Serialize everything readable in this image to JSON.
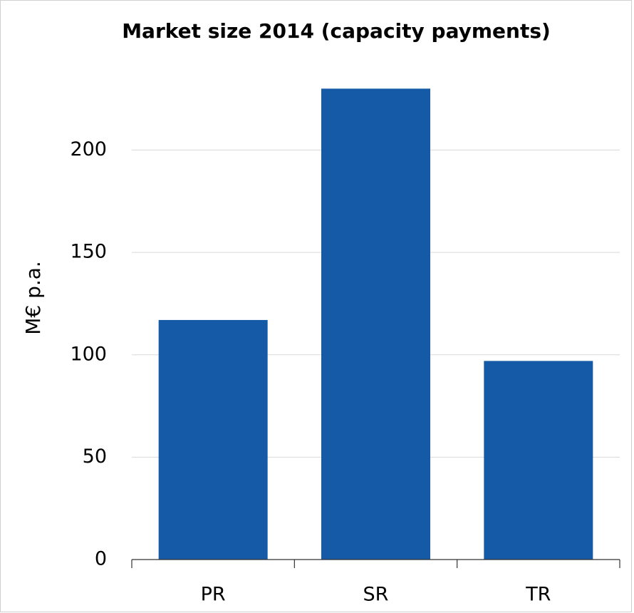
{
  "chart_data": {
    "type": "bar",
    "title": "Market size 2014 (capacity payments)",
    "y_label": "M€ p.a.",
    "categories": [
      "PR",
      "SR",
      "TR"
    ],
    "values": [
      117,
      230,
      97
    ],
    "color": "#155aa6",
    "ylim": [
      0,
      235
    ],
    "yticks": [
      0,
      50,
      100,
      150,
      200
    ],
    "grid": true
  }
}
